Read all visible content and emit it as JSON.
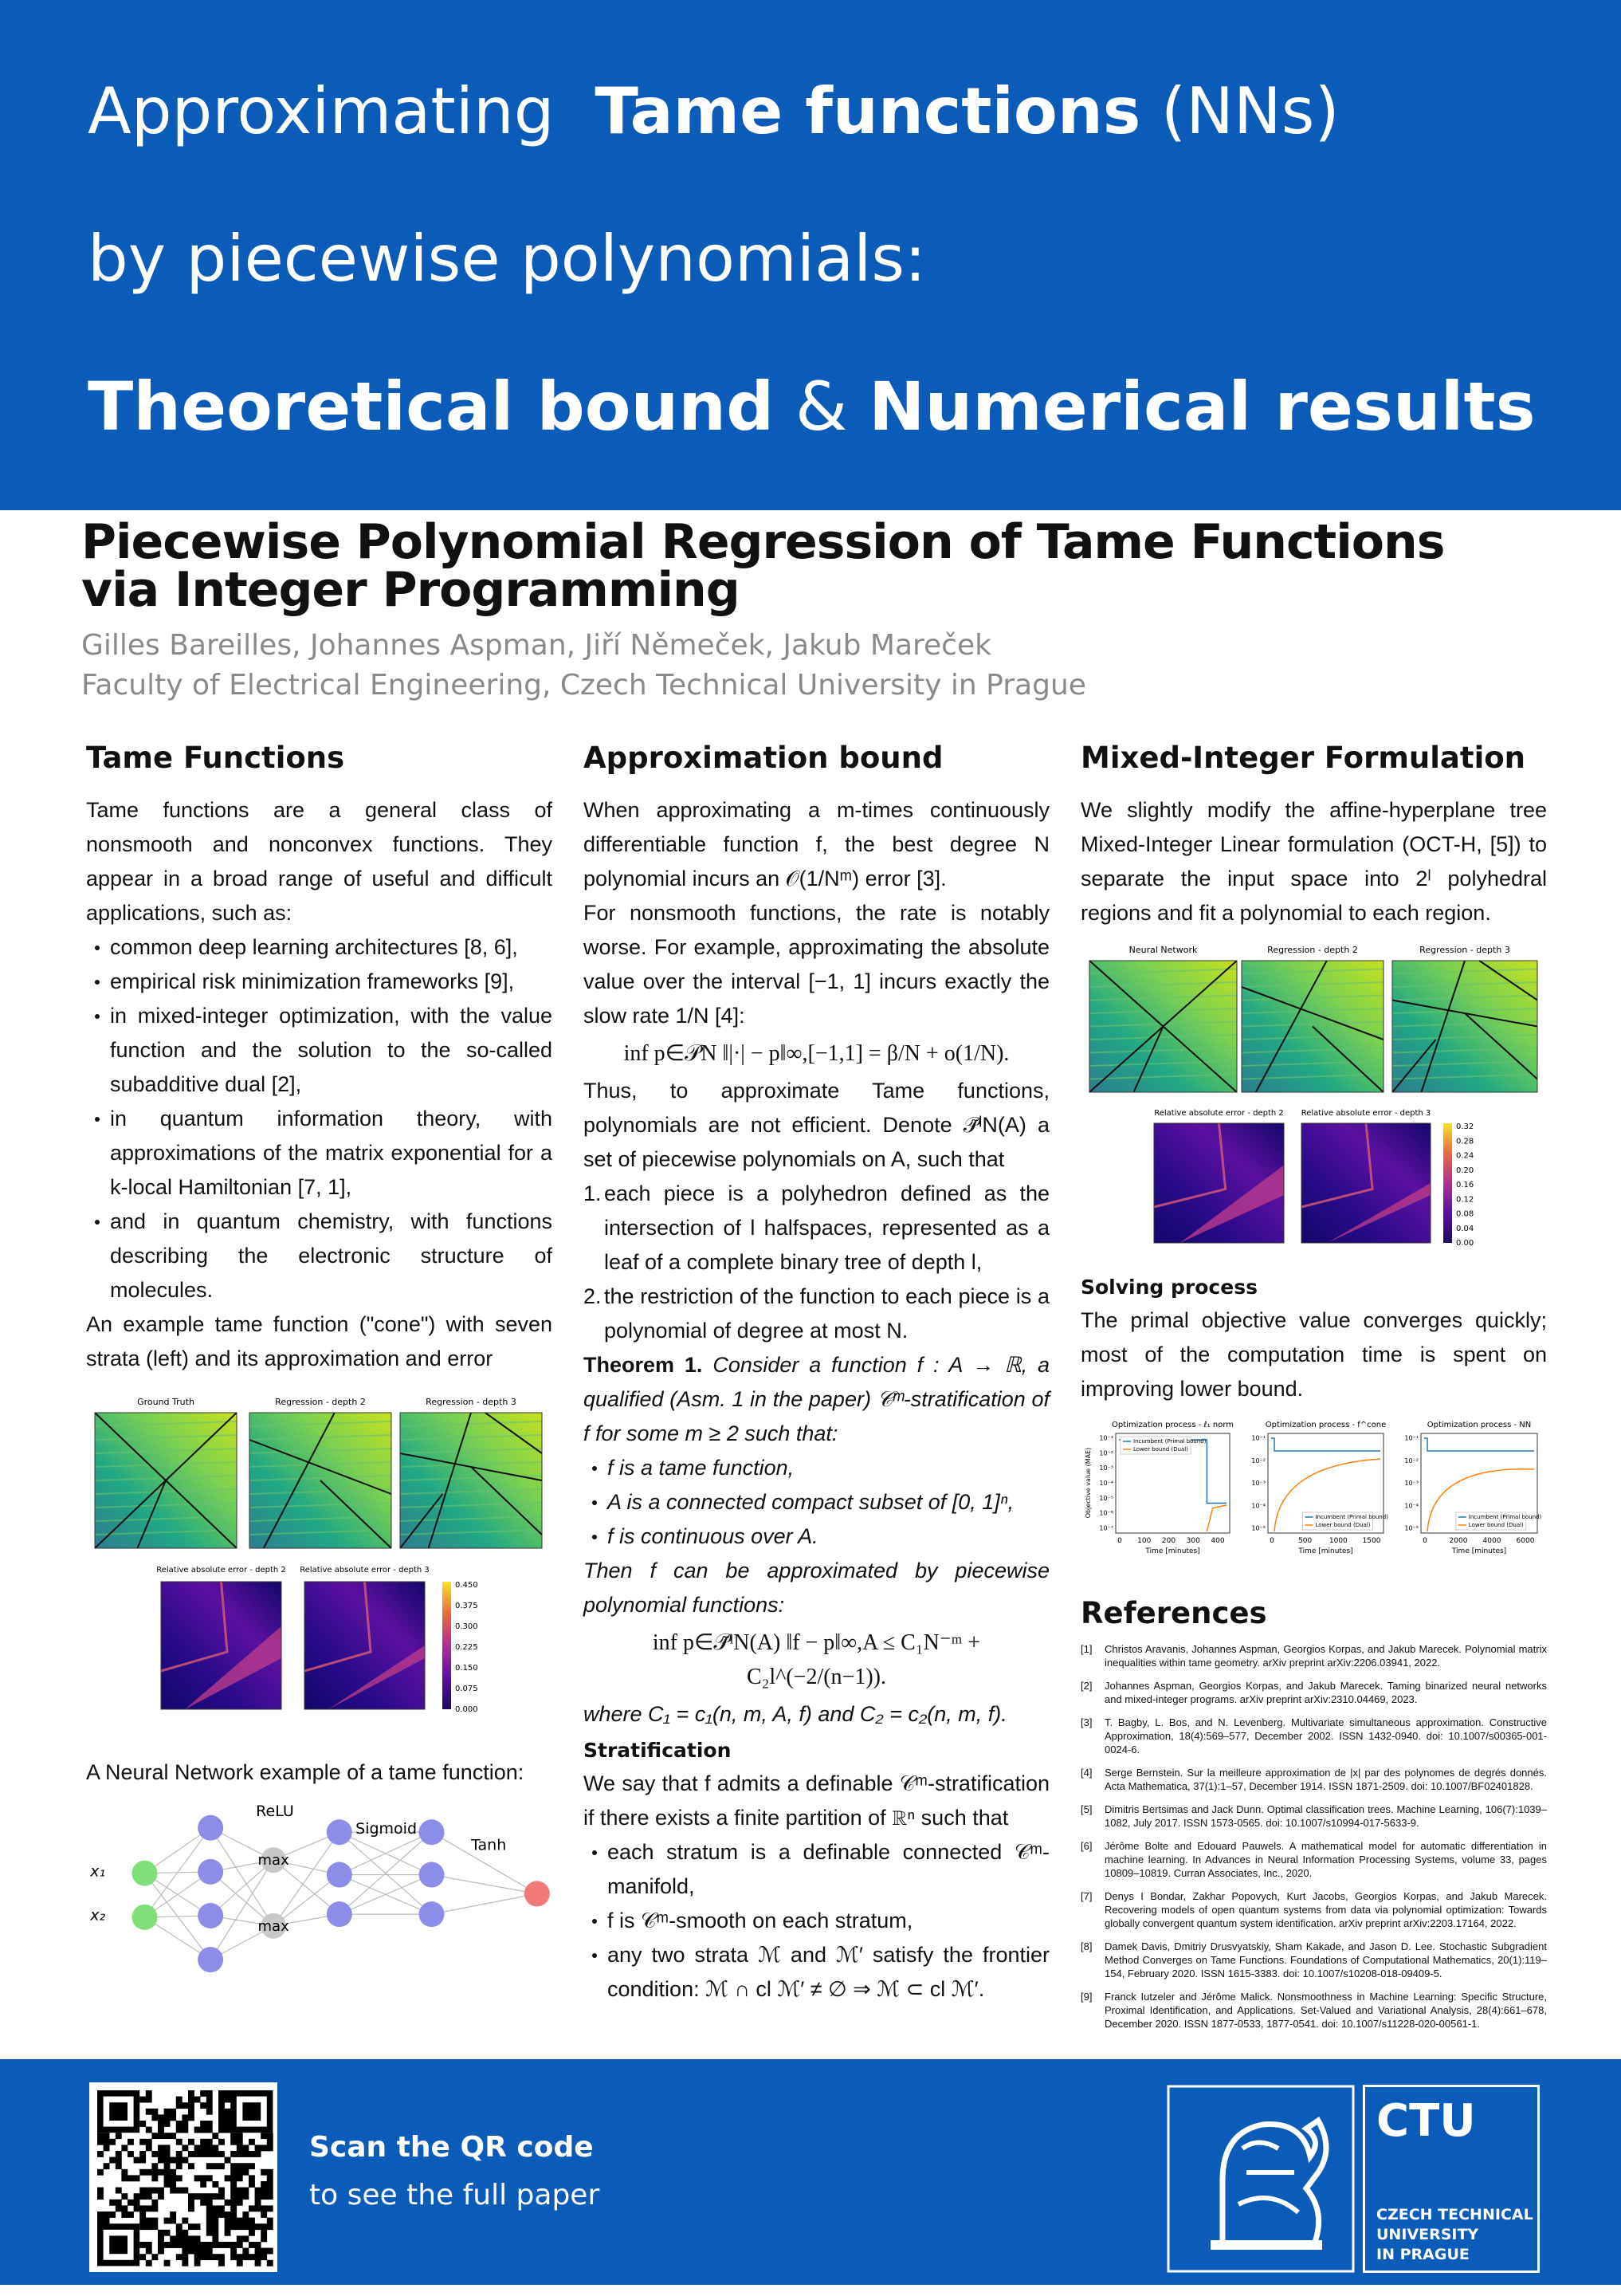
{
  "header": {
    "line1a": "Approximating",
    "line1b": "Tame functions",
    "line1c": "(NNs)",
    "line2": "by piecewise polynomials:",
    "line3a": "Theoretical bound",
    "line3b": "&",
    "line3c": "Numerical results"
  },
  "paper": {
    "title_line1": "Piecewise Polynomial Regression of Tame Functions",
    "title_line2": "via Integer Programming",
    "authors": "Gilles Bareilles, Johannes Aspman, Jiří Němeček, Jakub Mareček",
    "affiliation": "Faculty of Electrical Engineering, Czech Technical University in Prague"
  },
  "tame_functions": {
    "heading": "Tame Functions",
    "intro": "Tame functions are a general class of nonsmooth and nonconvex functions. They appear in a broad range of useful and difficult applications, such as:",
    "bullets": [
      "common deep learning architectures [8, 6],",
      "empirical risk minimization frameworks [9],",
      "in mixed-integer optimization, with the value function and the solution to the so-called subadditive dual [2],",
      "in quantum information theory, with approximations of the matrix exponential for a k-local Hamiltonian [7, 1],",
      "and in quantum chemistry, with functions describing the electronic structure of molecules."
    ],
    "example_caption": "An example tame function (\"cone\") with seven strata (left) and its approximation and error",
    "figure": {
      "panel_titles": [
        "Ground Truth",
        "Regression - depth 2",
        "Regression - depth 3"
      ],
      "error_titles": [
        "Relative absolute error - depth 2",
        "Relative absolute error - depth 3"
      ],
      "colorbar_ticks": [
        "0.450",
        "0.375",
        "0.300",
        "0.225",
        "0.150",
        "0.075",
        "0.000"
      ]
    },
    "nn_caption": "A Neural Network example of a tame function:",
    "nn_figure": {
      "layer_labels": [
        "ReLU",
        "Sigmoid",
        "Tanh"
      ],
      "max_labels": [
        "max",
        "max"
      ],
      "inputs": [
        "x₁",
        "x₂"
      ]
    }
  },
  "approximation_bound": {
    "heading": "Approximation bound",
    "p1": "When approximating a m-times continuously differentiable function f, the best degree N polynomial incurs an 𝒪(1/Nᵐ) error [3].",
    "p2": "For nonsmooth functions, the rate is notably worse. For example, approximating the absolute value over the interval [−1, 1] incurs exactly the slow rate 1/N [4]:",
    "eq1": "inf p∈𝒫N ‖|·| − p‖∞,[−1,1] = β/N + o(1/N).",
    "p3": "Thus, to approximate Tame functions, polynomials are not efficient. Denote 𝒫̃ˡN(A) a set of piecewise polynomials on A, such that",
    "list": [
      {
        "number": "1.",
        "text": "each piece is a polyhedron defined as the intersection of l halfspaces, represented as a leaf of a complete binary tree of depth l,"
      },
      {
        "number": "2.",
        "text": "the restriction of the function to each piece is a polynomial of degree at most N."
      }
    ],
    "theorem_label": "Theorem 1.",
    "theorem_text": "Consider a function f : A → ℝ, a qualified (Asm. 1 in the paper) 𝒞ᵐ-stratification of f for some m ≥ 2 such that:",
    "theorem_bullets": [
      "f is a tame function,",
      "A is a connected compact subset of [0, 1]ⁿ,",
      "f is continuous over A."
    ],
    "then": "Then f can be approximated by piecewise polynomial functions:",
    "eq2": "inf p∈𝒫̃ˡN(A) ‖f − p‖∞,A ≤ C₁N⁻ᵐ + C₂l^(−2/(n−1)).",
    "where": "where C₁ = c₁(n, m, A, f) and C₂ = c₂(n, m, f).",
    "strat_heading": "Stratification",
    "strat_text": "We say that f admits a definable 𝒞ᵐ-stratification if there exists a finite partition of ℝⁿ such that",
    "strat_bullets": [
      "each stratum is a definable connected 𝒞ᵐ-manifold,",
      "f is 𝒞ᵐ-smooth on each stratum,",
      "any two strata ℳ and ℳ′ satisfy the frontier condition: ℳ ∩ cl ℳ′ ≠ ∅ ⇒ ℳ ⊂ cl ℳ′."
    ]
  },
  "mixed_integer": {
    "heading": "Mixed-Integer Formulation",
    "p1": "We slightly modify the affine-hyperplane tree Mixed-Integer Linear formulation (OCT-H, [5]) to separate the input space into 2ˡ polyhedral regions and fit a polynomial to each region.",
    "figure": {
      "panel_titles": [
        "Neural Network",
        "Regression - depth 2",
        "Regression - depth 3"
      ],
      "error_titles": [
        "Relative absolute error - depth 2",
        "Relative absolute error - depth 3"
      ],
      "colorbar_ticks": [
        "0.32",
        "0.28",
        "0.24",
        "0.20",
        "0.16",
        "0.12",
        "0.08",
        "0.04",
        "0.00"
      ]
    },
    "solving_heading": "Solving process",
    "solving_text": "The primal objective value converges quickly; most of the computation time is spent on improving lower bound.",
    "plots": {
      "titles": [
        "Optimization process - ℓ₁ norm",
        "Optimization process - f^cone",
        "Optimization process - NN"
      ],
      "legend": [
        "Incumbent (Primal bound)",
        "Lower bound (Dual)"
      ],
      "xlabel": "Time [minutes]",
      "ylabel": "Objective value (MAE)",
      "xticks": [
        [
          "0",
          "100",
          "200",
          "300",
          "400"
        ],
        [
          "0",
          "500",
          "1000",
          "1500"
        ],
        [
          "0",
          "2000",
          "4000",
          "6000"
        ]
      ],
      "yticks": [
        [
          "10⁻¹",
          "10⁻²",
          "10⁻³",
          "10⁻⁴",
          "10⁻⁵",
          "10⁻⁶",
          "10⁻⁷"
        ],
        [
          "10⁻¹",
          "10⁻²",
          "10⁻³",
          "10⁻⁴",
          "10⁻⁵"
        ],
        [
          "10⁻¹",
          "10⁻²",
          "10⁻³",
          "10⁻⁴",
          "10⁻⁵"
        ]
      ]
    }
  },
  "references": {
    "heading": "References",
    "items": [
      {
        "number": "[1]",
        "text": "Christos Aravanis, Johannes Aspman, Georgios Korpas, and Jakub Marecek. Polynomial matrix inequalities within tame geometry. arXiv preprint arXiv:2206.03941, 2022."
      },
      {
        "number": "[2]",
        "text": "Johannes Aspman, Georgios Korpas, and Jakub Marecek. Taming binarized neural networks and mixed-integer programs. arXiv preprint arXiv:2310.04469, 2023."
      },
      {
        "number": "[3]",
        "text": "T. Bagby, L. Bos, and N. Levenberg. Multivariate simultaneous approximation. Constructive Approximation, 18(4):569–577, December 2002. ISSN 1432-0940. doi: 10.1007/s00365-001-0024-6."
      },
      {
        "number": "[4]",
        "text": "Serge Bernstein. Sur la meilleure approximation de |x| par des polynomes de degrés donnés. Acta Mathematica, 37(1):1–57, December 1914. ISSN 1871-2509. doi: 10.1007/BF02401828."
      },
      {
        "number": "[5]",
        "text": "Dimitris Bertsimas and Jack Dunn. Optimal classification trees. Machine Learning, 106(7):1039–1082, July 2017. ISSN 1573-0565. doi: 10.1007/s10994-017-5633-9."
      },
      {
        "number": "[6]",
        "text": "Jérôme Bolte and Edouard Pauwels. A mathematical model for automatic differentiation in machine learning. In Advances in Neural Information Processing Systems, volume 33, pages 10809–10819. Curran Associates, Inc., 2020."
      },
      {
        "number": "[7]",
        "text": "Denys I Bondar, Zakhar Popovych, Kurt Jacobs, Georgios Korpas, and Jakub Marecek. Recovering models of open quantum systems from data via polynomial optimization: Towards globally convergent quantum system identification. arXiv preprint arXiv:2203.17164, 2022."
      },
      {
        "number": "[8]",
        "text": "Damek Davis, Dmitriy Drusvyatskiy, Sham Kakade, and Jason D. Lee. Stochastic Subgradient Method Converges on Tame Functions. Foundations of Computational Mathematics, 20(1):119–154, February 2020. ISSN 1615-3383. doi: 10.1007/s10208-018-09409-5."
      },
      {
        "number": "[9]",
        "text": "Franck Iutzeler and Jérôme Malick. Nonsmoothness in Machine Learning: Specific Structure, Proximal Identification, and Applications. Set-Valued and Variational Analysis, 28(4):661–678, December 2020. ISSN 1877-0533, 1877-0541. doi: 10.1007/s11228-020-00561-1."
      }
    ]
  },
  "footer": {
    "qr_title": "Scan the QR code",
    "qr_subtitle": "to see the full paper",
    "logo": {
      "acronym": "CTU",
      "lines": [
        "CZECH TECHNICAL",
        "UNIVERSITY",
        "IN PRAGUE"
      ]
    }
  }
}
